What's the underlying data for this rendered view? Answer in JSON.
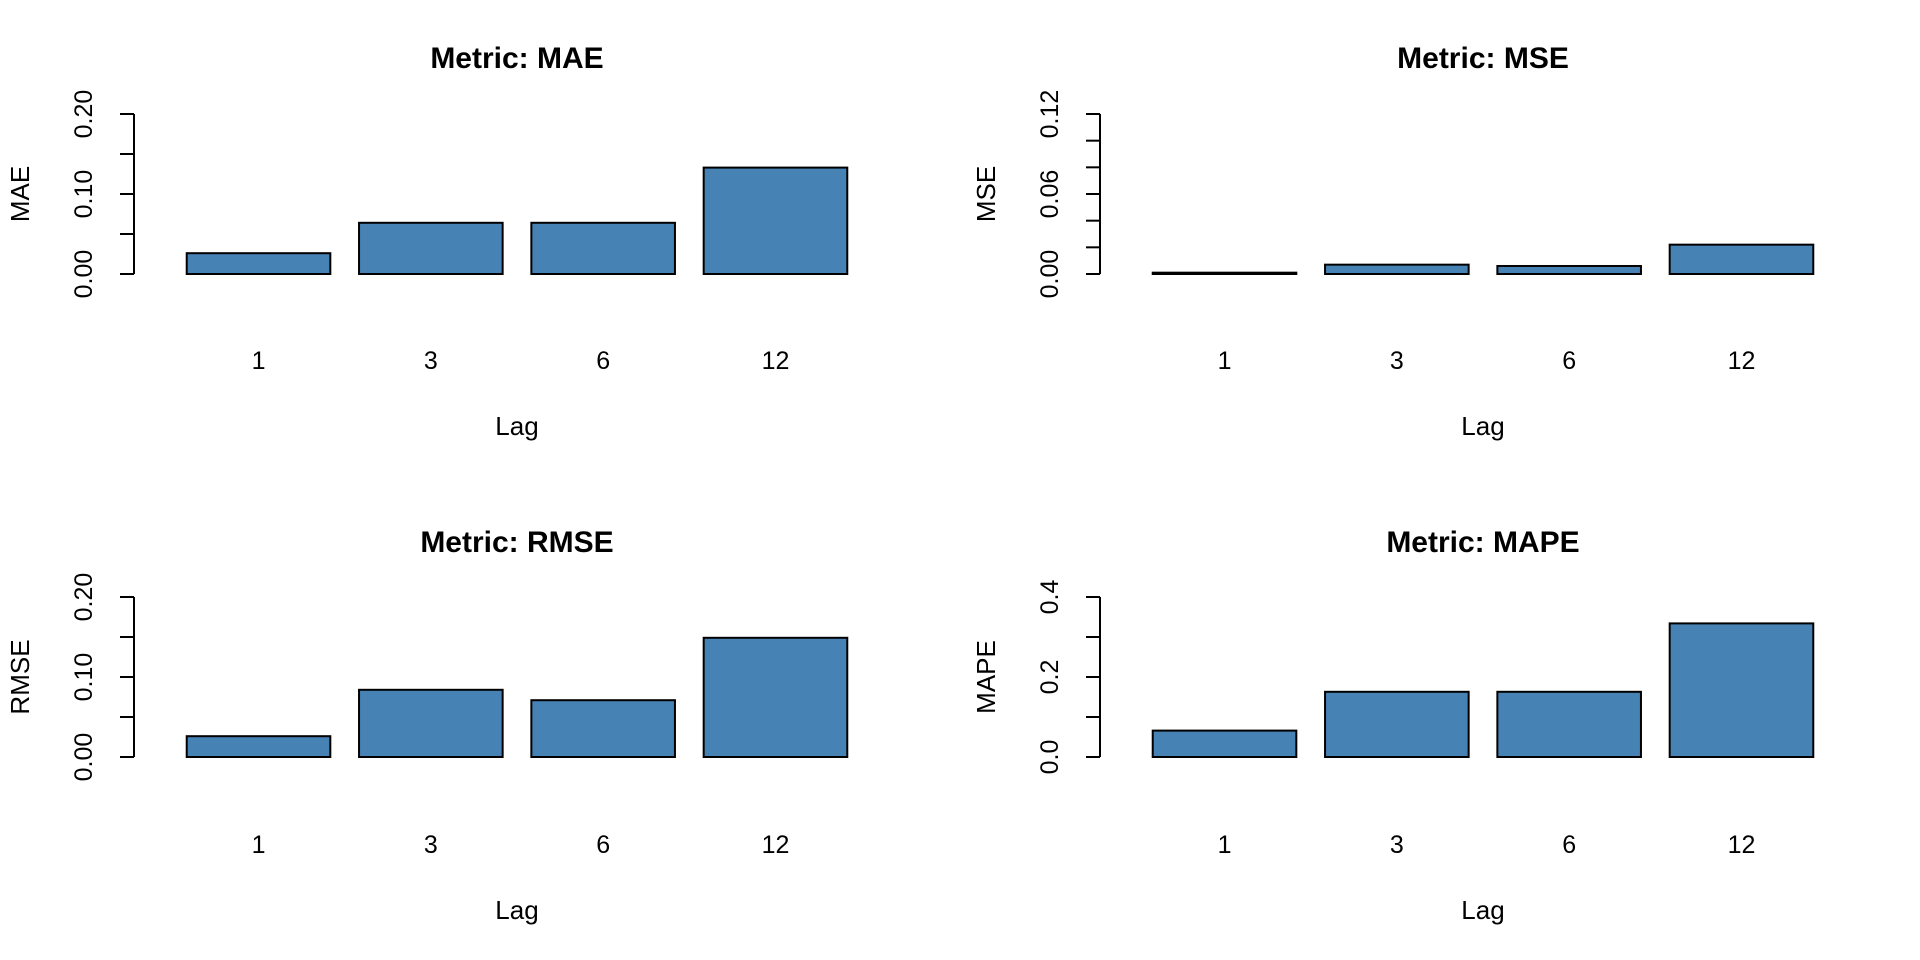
{
  "chart_data": [
    {
      "type": "bar",
      "title": "Metric: MAE",
      "xlabel": "Lag",
      "ylabel": "MAE",
      "categories": [
        "1",
        "3",
        "6",
        "12"
      ],
      "values": [
        0.026,
        0.064,
        0.064,
        0.133
      ],
      "ylim": [
        0,
        0.2
      ],
      "yticks": [
        0,
        0.05,
        0.1,
        0.15,
        0.2
      ],
      "yticklabels": [
        "0.00",
        "",
        "0.10",
        "",
        "0.20"
      ],
      "bar_color": "#4682B4",
      "grid": false
    },
    {
      "type": "bar",
      "title": "Metric: MSE",
      "xlabel": "Lag",
      "ylabel": "MSE",
      "categories": [
        "1",
        "3",
        "6",
        "12"
      ],
      "values": [
        0.001,
        0.007,
        0.006,
        0.022
      ],
      "ylim": [
        0,
        0.12
      ],
      "yticks": [
        0,
        0.02,
        0.04,
        0.06,
        0.08,
        0.1,
        0.12
      ],
      "yticklabels": [
        "0.00",
        "",
        "",
        "0.06",
        "",
        "",
        "0.12"
      ],
      "bar_color": "#4682B4",
      "grid": false
    },
    {
      "type": "bar",
      "title": "Metric: RMSE",
      "xlabel": "Lag",
      "ylabel": "RMSE",
      "categories": [
        "1",
        "3",
        "6",
        "12"
      ],
      "values": [
        0.026,
        0.084,
        0.071,
        0.149
      ],
      "ylim": [
        0,
        0.2
      ],
      "yticks": [
        0,
        0.05,
        0.1,
        0.15,
        0.2
      ],
      "yticklabels": [
        "0.00",
        "",
        "0.10",
        "",
        "0.20"
      ],
      "bar_color": "#4682B4",
      "grid": false
    },
    {
      "type": "bar",
      "title": "Metric: MAPE",
      "xlabel": "Lag",
      "ylabel": "MAPE",
      "categories": [
        "1",
        "3",
        "6",
        "12"
      ],
      "values": [
        0.066,
        0.163,
        0.163,
        0.334
      ],
      "ylim": [
        0,
        0.4
      ],
      "yticks": [
        0,
        0.1,
        0.2,
        0.3,
        0.4
      ],
      "yticklabels": [
        "0.0",
        "",
        "0.2",
        "",
        "0.4"
      ],
      "bar_color": "#4682B4",
      "grid": false
    }
  ]
}
